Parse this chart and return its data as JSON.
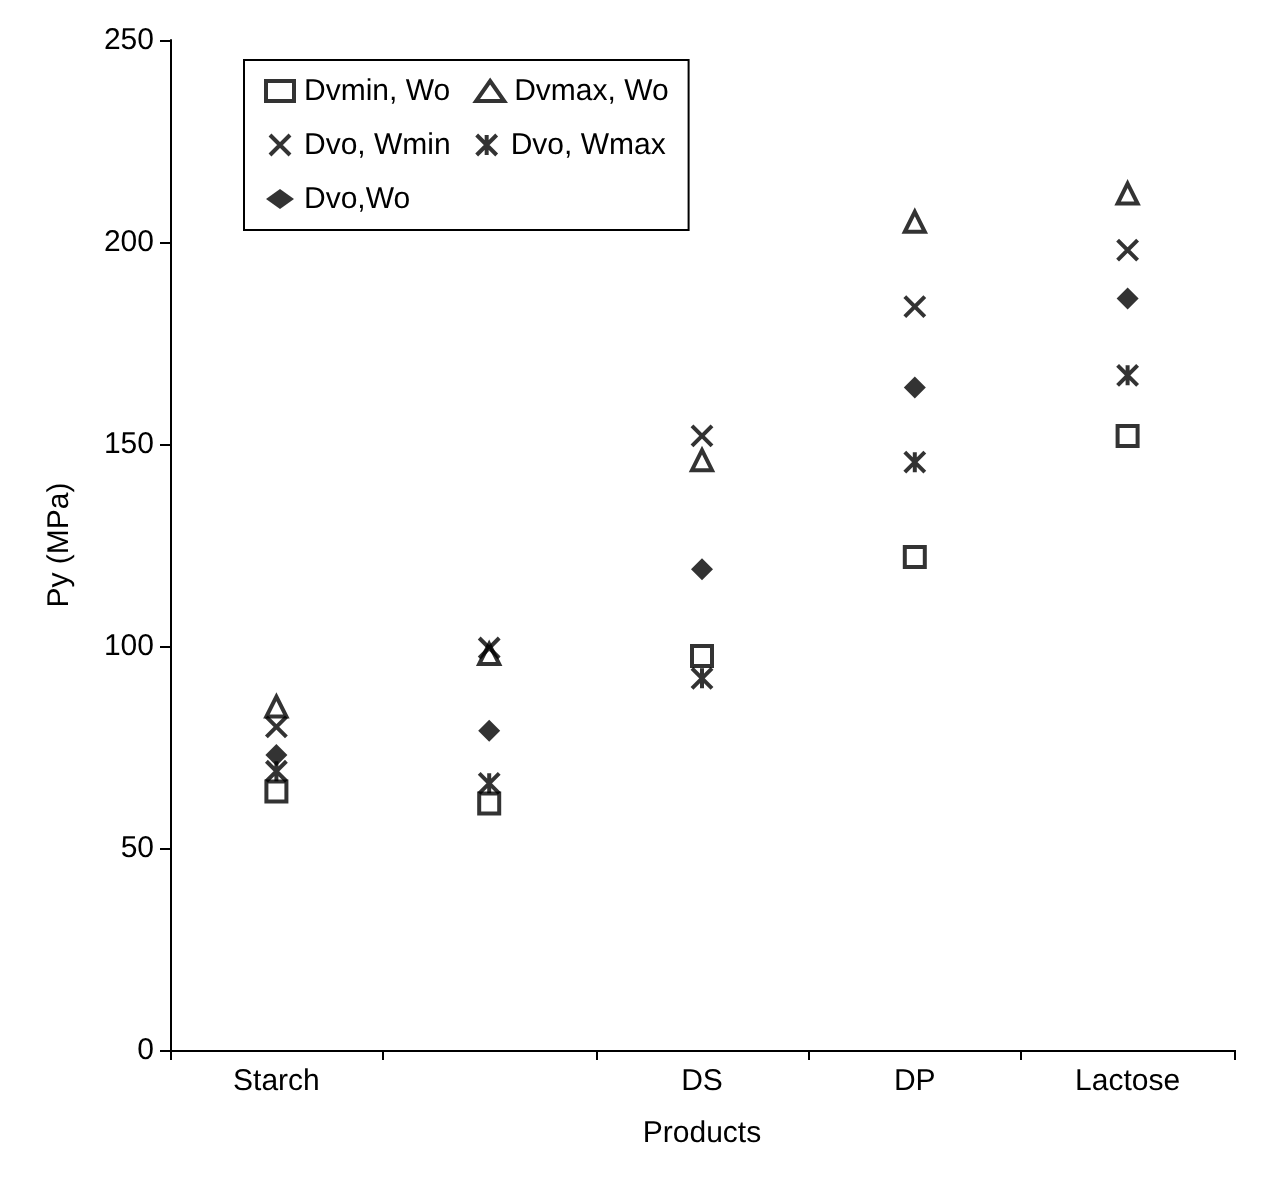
{
  "chart_data": {
    "type": "scatter",
    "xlabel": "Products",
    "ylabel": "Py (MPa)",
    "categories": [
      "Starch",
      null,
      "DS",
      "DP",
      "Lactose"
    ],
    "ylim": [
      0,
      250
    ],
    "yticks": [
      0,
      50,
      100,
      150,
      200,
      250
    ],
    "grid": false,
    "legend": "top left",
    "series": [
      {
        "name": "Dvmin, Wo",
        "color": "#000000",
        "marker": "square",
        "values": [
          64,
          61,
          97.5,
          122,
          152
        ]
      },
      {
        "name": "Dvmax, Wo",
        "color": "#000000",
        "marker": "triangle",
        "values": [
          85,
          98,
          146,
          205,
          212
        ]
      },
      {
        "name": "Dvo, Wmin",
        "color": "#000000",
        "marker": "cross",
        "values": [
          80,
          99.5,
          152,
          184,
          198
        ]
      },
      {
        "name": "Dvo, Wmax",
        "color": "#000000",
        "marker": "cross",
        "values": [
          69,
          66,
          92,
          145.5,
          167
        ]
      },
      {
        "name": "Dvo,Wo",
        "color": "#000000",
        "marker": "diamond",
        "values": [
          73,
          79,
          119,
          164,
          186
        ]
      }
    ]
  }
}
